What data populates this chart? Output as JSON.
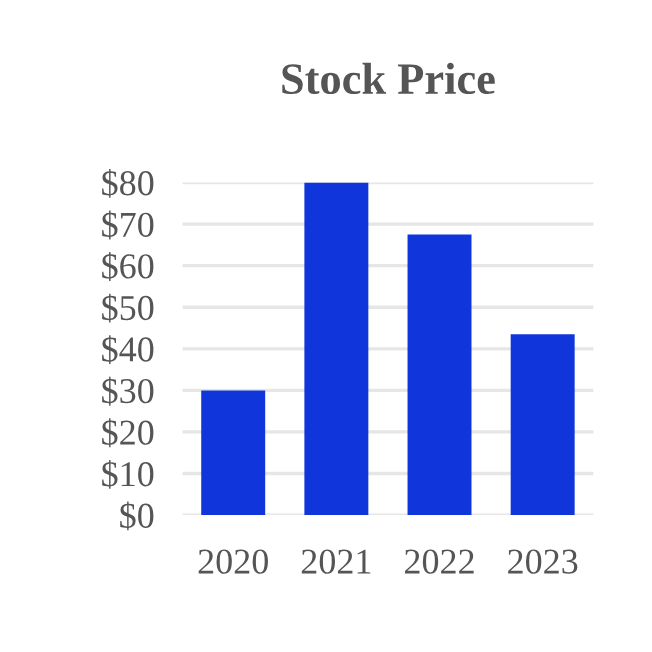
{
  "chart_data": {
    "type": "bar",
    "title": "Stock Price",
    "categories": [
      "2020",
      "2021",
      "2022",
      "2023"
    ],
    "values": [
      30,
      80,
      67.5,
      43.5
    ],
    "color": "#1035db",
    "ylim": [
      0,
      80
    ],
    "yticks": [
      {
        "value": 0,
        "label": "$0"
      },
      {
        "value": 10,
        "label": "$10"
      },
      {
        "value": 20,
        "label": "$20"
      },
      {
        "value": 30,
        "label": "$30"
      },
      {
        "value": 40,
        "label": "$40"
      },
      {
        "value": 50,
        "label": "$50"
      },
      {
        "value": 60,
        "label": "$60"
      },
      {
        "value": 70,
        "label": "$70"
      },
      {
        "value": 80,
        "label": "$80"
      }
    ],
    "grid": "y",
    "legend": false
  }
}
